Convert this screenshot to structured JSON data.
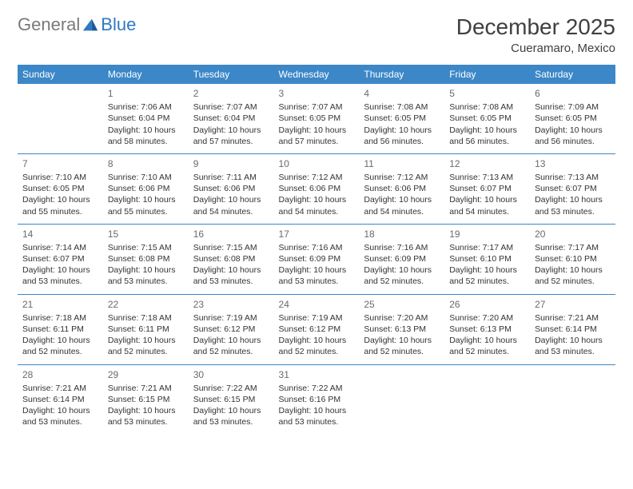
{
  "logo": {
    "general": "General",
    "blue": "Blue"
  },
  "title": "December 2025",
  "location": "Cueramaro, Mexico",
  "header_color": "#3c87c7",
  "row_border_color": "#3c87c7",
  "text_color": "#333333",
  "daynum_color": "#6a6a6a",
  "days_of_week": [
    "Sunday",
    "Monday",
    "Tuesday",
    "Wednesday",
    "Thursday",
    "Friday",
    "Saturday"
  ],
  "weeks": [
    [
      {
        "n": "",
        "sr": "",
        "ss": "",
        "dl": ""
      },
      {
        "n": "1",
        "sr": "7:06 AM",
        "ss": "6:04 PM",
        "dl": "10 hours and 58 minutes."
      },
      {
        "n": "2",
        "sr": "7:07 AM",
        "ss": "6:04 PM",
        "dl": "10 hours and 57 minutes."
      },
      {
        "n": "3",
        "sr": "7:07 AM",
        "ss": "6:05 PM",
        "dl": "10 hours and 57 minutes."
      },
      {
        "n": "4",
        "sr": "7:08 AM",
        "ss": "6:05 PM",
        "dl": "10 hours and 56 minutes."
      },
      {
        "n": "5",
        "sr": "7:08 AM",
        "ss": "6:05 PM",
        "dl": "10 hours and 56 minutes."
      },
      {
        "n": "6",
        "sr": "7:09 AM",
        "ss": "6:05 PM",
        "dl": "10 hours and 56 minutes."
      }
    ],
    [
      {
        "n": "7",
        "sr": "7:10 AM",
        "ss": "6:05 PM",
        "dl": "10 hours and 55 minutes."
      },
      {
        "n": "8",
        "sr": "7:10 AM",
        "ss": "6:06 PM",
        "dl": "10 hours and 55 minutes."
      },
      {
        "n": "9",
        "sr": "7:11 AM",
        "ss": "6:06 PM",
        "dl": "10 hours and 54 minutes."
      },
      {
        "n": "10",
        "sr": "7:12 AM",
        "ss": "6:06 PM",
        "dl": "10 hours and 54 minutes."
      },
      {
        "n": "11",
        "sr": "7:12 AM",
        "ss": "6:06 PM",
        "dl": "10 hours and 54 minutes."
      },
      {
        "n": "12",
        "sr": "7:13 AM",
        "ss": "6:07 PM",
        "dl": "10 hours and 54 minutes."
      },
      {
        "n": "13",
        "sr": "7:13 AM",
        "ss": "6:07 PM",
        "dl": "10 hours and 53 minutes."
      }
    ],
    [
      {
        "n": "14",
        "sr": "7:14 AM",
        "ss": "6:07 PM",
        "dl": "10 hours and 53 minutes."
      },
      {
        "n": "15",
        "sr": "7:15 AM",
        "ss": "6:08 PM",
        "dl": "10 hours and 53 minutes."
      },
      {
        "n": "16",
        "sr": "7:15 AM",
        "ss": "6:08 PM",
        "dl": "10 hours and 53 minutes."
      },
      {
        "n": "17",
        "sr": "7:16 AM",
        "ss": "6:09 PM",
        "dl": "10 hours and 53 minutes."
      },
      {
        "n": "18",
        "sr": "7:16 AM",
        "ss": "6:09 PM",
        "dl": "10 hours and 52 minutes."
      },
      {
        "n": "19",
        "sr": "7:17 AM",
        "ss": "6:10 PM",
        "dl": "10 hours and 52 minutes."
      },
      {
        "n": "20",
        "sr": "7:17 AM",
        "ss": "6:10 PM",
        "dl": "10 hours and 52 minutes."
      }
    ],
    [
      {
        "n": "21",
        "sr": "7:18 AM",
        "ss": "6:11 PM",
        "dl": "10 hours and 52 minutes."
      },
      {
        "n": "22",
        "sr": "7:18 AM",
        "ss": "6:11 PM",
        "dl": "10 hours and 52 minutes."
      },
      {
        "n": "23",
        "sr": "7:19 AM",
        "ss": "6:12 PM",
        "dl": "10 hours and 52 minutes."
      },
      {
        "n": "24",
        "sr": "7:19 AM",
        "ss": "6:12 PM",
        "dl": "10 hours and 52 minutes."
      },
      {
        "n": "25",
        "sr": "7:20 AM",
        "ss": "6:13 PM",
        "dl": "10 hours and 52 minutes."
      },
      {
        "n": "26",
        "sr": "7:20 AM",
        "ss": "6:13 PM",
        "dl": "10 hours and 52 minutes."
      },
      {
        "n": "27",
        "sr": "7:21 AM",
        "ss": "6:14 PM",
        "dl": "10 hours and 53 minutes."
      }
    ],
    [
      {
        "n": "28",
        "sr": "7:21 AM",
        "ss": "6:14 PM",
        "dl": "10 hours and 53 minutes."
      },
      {
        "n": "29",
        "sr": "7:21 AM",
        "ss": "6:15 PM",
        "dl": "10 hours and 53 minutes."
      },
      {
        "n": "30",
        "sr": "7:22 AM",
        "ss": "6:15 PM",
        "dl": "10 hours and 53 minutes."
      },
      {
        "n": "31",
        "sr": "7:22 AM",
        "ss": "6:16 PM",
        "dl": "10 hours and 53 minutes."
      },
      {
        "n": "",
        "sr": "",
        "ss": "",
        "dl": ""
      },
      {
        "n": "",
        "sr": "",
        "ss": "",
        "dl": ""
      },
      {
        "n": "",
        "sr": "",
        "ss": "",
        "dl": ""
      }
    ]
  ],
  "labels": {
    "sunrise": "Sunrise:",
    "sunset": "Sunset:",
    "daylight": "Daylight:"
  }
}
